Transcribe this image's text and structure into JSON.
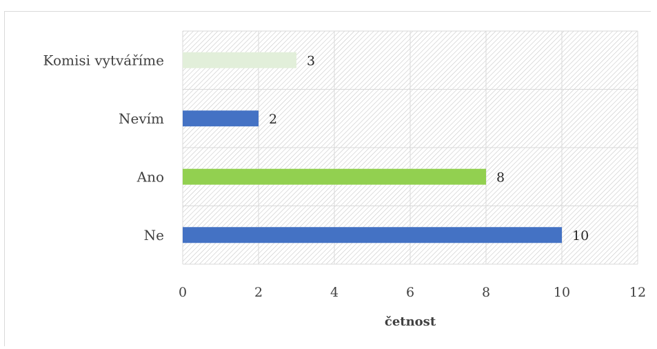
{
  "chart_data": {
    "type": "bar",
    "orientation": "horizontal",
    "categories": [
      "Komisi vytváříme",
      "Nevím",
      "Ano",
      "Ne"
    ],
    "values": [
      3,
      2,
      8,
      10
    ],
    "bar_colors": [
      "#e2efda",
      "#4472c4",
      "#92d050",
      "#4472c4"
    ],
    "xlabel": "četnost",
    "xlim": [
      0,
      12
    ],
    "xticks": [
      "0",
      "2",
      "4",
      "6",
      "8",
      "10",
      "12"
    ],
    "data_labels": [
      "3",
      "2",
      "8",
      "10"
    ],
    "grid": true,
    "plot_pattern": "diagonal-hatch",
    "legend": "none"
  }
}
